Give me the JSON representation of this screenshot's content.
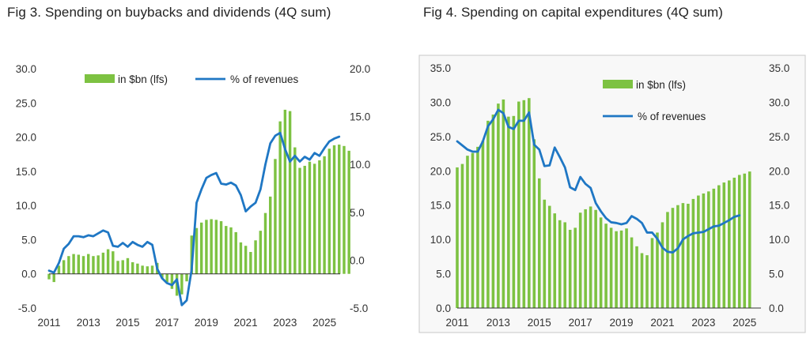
{
  "colors": {
    "bar": "#7dc242",
    "line": "#1f77c4",
    "panel2_bg": "#f8f8f8",
    "panel2_border": "#c8c8c8",
    "zero_line": "#333333"
  },
  "chart_data": [
    {
      "type": "bar+line",
      "title": "Fig 3. Spending on buybacks and dividends (4Q sum)",
      "xticks": [
        "2011",
        "2013",
        "2015",
        "2017",
        "2019",
        "2021",
        "2023",
        "2025"
      ],
      "left_axis": {
        "ylim": [
          -5,
          30
        ],
        "ticks": [
          "-5.0",
          "0.0",
          "5.0",
          "10.0",
          "15.0",
          "20.0",
          "25.0",
          "30.0"
        ]
      },
      "right_axis": {
        "ylim": [
          -5,
          20
        ],
        "ticks": [
          "-5.0",
          "0.0",
          "5.0",
          "10.0",
          "15.0",
          "20.0"
        ]
      },
      "legend": {
        "position": "top",
        "bar_label": "in $bn (lfs)",
        "line_label": "% of revenues"
      },
      "x_start": 2011.0,
      "x_step": 0.25,
      "series": [
        {
          "name": "in $bn (lfs)",
          "axis": "left",
          "kind": "bar",
          "values": [
            -0.8,
            -1.2,
            1.2,
            2.0,
            2.6,
            2.9,
            2.8,
            2.6,
            2.9,
            2.6,
            2.7,
            3.1,
            3.6,
            3.3,
            1.9,
            2.0,
            2.3,
            1.7,
            1.5,
            1.2,
            1.1,
            1.2,
            1.6,
            -0.6,
            -1.2,
            -2.2,
            -3.2,
            -3.0,
            -1.1,
            5.6,
            6.7,
            7.5,
            7.9,
            8.0,
            7.9,
            7.7,
            7.0,
            6.8,
            6.1,
            4.6,
            4.1,
            3.2,
            4.9,
            6.3,
            8.9,
            11.3,
            16.8,
            22.3,
            24.0,
            23.8,
            18.5,
            15.5,
            15.8,
            16.4,
            16.1,
            16.6,
            17.2,
            18.3,
            18.8,
            18.9,
            18.7,
            18.0
          ]
        },
        {
          "name": "% of revenues",
          "axis": "right",
          "kind": "line",
          "values": [
            -1.1,
            -1.3,
            -0.3,
            1.2,
            1.7,
            2.5,
            2.5,
            2.4,
            2.6,
            2.5,
            2.8,
            3.1,
            2.9,
            1.5,
            1.4,
            1.8,
            1.4,
            1.9,
            1.6,
            1.4,
            1.9,
            1.6,
            -0.9,
            -1.9,
            -2.4,
            -2.6,
            -2.0,
            -4.7,
            -4.2,
            -1.0,
            6.0,
            7.4,
            8.6,
            8.9,
            9.1,
            8.0,
            7.9,
            8.1,
            7.8,
            6.8,
            5.1,
            5.6,
            6.0,
            7.4,
            10.0,
            12.2,
            13.0,
            13.3,
            11.6,
            10.3,
            10.9,
            10.3,
            10.8,
            10.5,
            11.2,
            10.9,
            11.7,
            12.4,
            12.7,
            12.9
          ]
        }
      ]
    },
    {
      "type": "bar+line",
      "title": "Fig 4. Spending on capital expenditures (4Q sum)",
      "xticks": [
        "2011",
        "2013",
        "2015",
        "2017",
        "2019",
        "2021",
        "2023",
        "2025"
      ],
      "left_axis": {
        "ylim": [
          0,
          35
        ],
        "ticks": [
          "0.0",
          "5.0",
          "10.0",
          "15.0",
          "20.0",
          "25.0",
          "30.0",
          "35.0"
        ]
      },
      "right_axis": {
        "ylim": [
          0,
          35
        ],
        "ticks": [
          "0.0",
          "5.0",
          "10.0",
          "15.0",
          "20.0",
          "25.0",
          "30.0",
          "35.0"
        ]
      },
      "legend": {
        "position": "top-center",
        "bar_label": "in $bn (lfs)",
        "line_label": "% of revenues"
      },
      "x_start": 2011.0,
      "x_step": 0.25,
      "series": [
        {
          "name": "in $bn (lfs)",
          "axis": "left",
          "kind": "bar",
          "values": [
            20.5,
            21.0,
            22.2,
            22.6,
            23.5,
            24.4,
            27.3,
            28.2,
            29.8,
            30.4,
            27.9,
            28.0,
            30.1,
            30.3,
            30.6,
            24.6,
            18.9,
            15.8,
            14.9,
            13.8,
            12.8,
            12.5,
            11.4,
            11.7,
            13.9,
            14.4,
            14.8,
            14.3,
            13.2,
            12.3,
            11.7,
            11.2,
            11.3,
            11.6,
            10.3,
            9.0,
            8.0,
            7.7,
            10.2,
            11.0,
            12.5,
            14.0,
            14.6,
            15.0,
            15.3,
            15.2,
            15.9,
            16.4,
            16.7,
            17.0,
            17.4,
            17.9,
            18.3,
            18.6,
            19.0,
            19.4,
            19.6,
            19.9
          ]
        },
        {
          "name": "% of revenues",
          "axis": "right",
          "kind": "line",
          "values": [
            24.3,
            23.7,
            23.1,
            22.8,
            22.8,
            24.3,
            26.5,
            27.5,
            28.9,
            28.4,
            26.4,
            26.1,
            27.3,
            27.3,
            28.5,
            23.8,
            23.1,
            20.7,
            20.8,
            23.4,
            22.0,
            20.5,
            17.6,
            17.2,
            19.1,
            18.1,
            17.5,
            15.3,
            14.1,
            13.1,
            12.5,
            12.4,
            12.2,
            12.4,
            13.4,
            13.0,
            12.4,
            11.0,
            11.0,
            10.1,
            8.8,
            8.2,
            8.1,
            8.7,
            10.0,
            10.5,
            10.9,
            11.0,
            11.1,
            11.5,
            11.9,
            12.0,
            12.4,
            12.8,
            13.3,
            13.5
          ]
        }
      ]
    }
  ]
}
